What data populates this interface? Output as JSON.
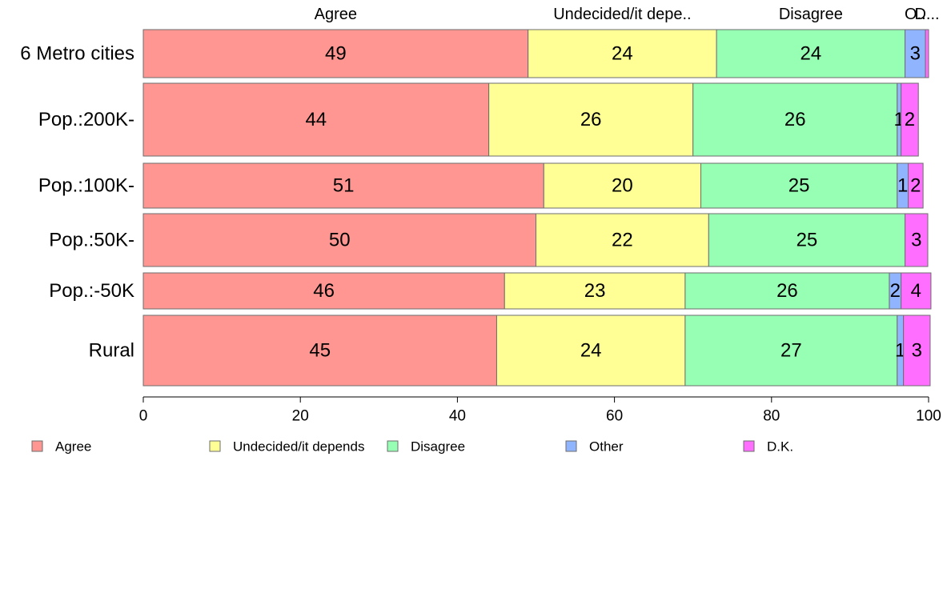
{
  "chart_data": {
    "type": "bar",
    "orientation": "horizontal",
    "stacked": true,
    "title": "",
    "xlabel": "",
    "ylabel": "",
    "xlim": [
      0,
      100
    ],
    "x_ticks": [
      "0",
      "20",
      "40",
      "60",
      "80",
      "100"
    ],
    "grid": false,
    "legend_position": "bottom",
    "categories": [
      "6 Metro cities",
      "Pop.:200K-",
      "Pop.:100K-",
      "Pop.:50K-",
      "Pop.:-50K",
      "Rural"
    ],
    "column_headers": [
      "Agree",
      "Undecided/it depe..",
      "Disagree",
      "O..",
      "D..."
    ],
    "series": [
      {
        "name": "Agree",
        "color": "#ff9691",
        "values": [
          49,
          44,
          51,
          50,
          46,
          45
        ],
        "labels": [
          "49",
          "44",
          "51",
          "50",
          "46",
          "45"
        ]
      },
      {
        "name": "Undecided/it depends",
        "color": "#ffff96",
        "values": [
          24,
          26,
          20,
          22,
          23,
          24
        ],
        "labels": [
          "24",
          "26",
          "20",
          "22",
          "23",
          "24"
        ]
      },
      {
        "name": "Disagree",
        "color": "#96ffb4",
        "values": [
          24,
          26,
          25,
          25,
          26,
          27
        ],
        "labels": [
          "24",
          "26",
          "25",
          "25",
          "26",
          "27"
        ]
      },
      {
        "name": "Other",
        "color": "#91b4ff",
        "values": [
          2.6,
          0.5,
          1.4,
          0,
          1.5,
          0.8
        ],
        "labels": [
          "3",
          "1",
          "1",
          "",
          "2",
          "1"
        ]
      },
      {
        "name": "D.K.",
        "color": "#ff6eff",
        "values": [
          0.4,
          2.2,
          1.9,
          2.9,
          3.8,
          3.4
        ],
        "labels": [
          "",
          "2",
          "2",
          "3",
          "4",
          "3"
        ]
      }
    ]
  }
}
